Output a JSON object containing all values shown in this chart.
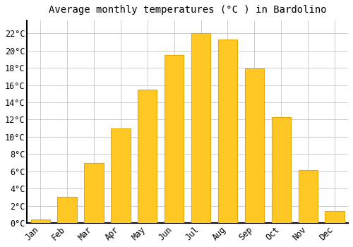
{
  "title": "Average monthly temperatures (°C ) in Bardolino",
  "months": [
    "Jan",
    "Feb",
    "Mar",
    "Apr",
    "May",
    "Jun",
    "Jul",
    "Aug",
    "Sep",
    "Oct",
    "Nov",
    "Dec"
  ],
  "values": [
    0.4,
    3.0,
    7.0,
    11.0,
    15.5,
    19.5,
    22.0,
    21.3,
    17.9,
    12.3,
    6.1,
    1.4
  ],
  "bar_color": "#FFC825",
  "bar_edge_color": "#E8A800",
  "background_color": "#ffffff",
  "grid_color": "#cccccc",
  "ylim": [
    0,
    23.5
  ],
  "yticks": [
    0,
    2,
    4,
    6,
    8,
    10,
    12,
    14,
    16,
    18,
    20,
    22
  ],
  "ytick_labels": [
    "0°C",
    "2°C",
    "4°C",
    "6°C",
    "8°C",
    "10°C",
    "12°C",
    "14°C",
    "16°C",
    "18°C",
    "20°C",
    "22°C"
  ],
  "title_fontsize": 10,
  "tick_fontsize": 8.5,
  "axis_linewidth": 1.5
}
